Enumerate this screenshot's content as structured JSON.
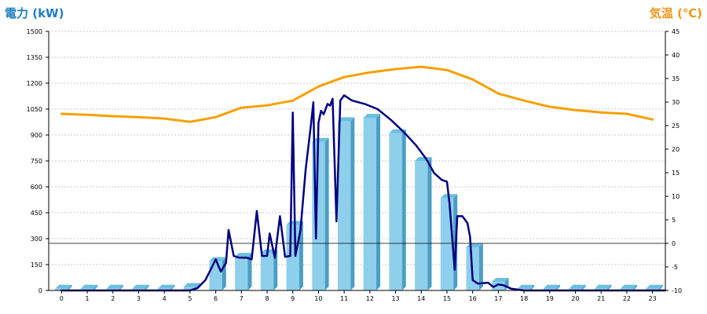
{
  "chart_data": {
    "type": "bar",
    "title": "",
    "left_axis": {
      "label": "電力 (kW)",
      "label_color": "#1f7fc0",
      "ylim": [
        0,
        1500
      ],
      "ticks": [
        0,
        150,
        300,
        450,
        600,
        750,
        900,
        1050,
        1200,
        1350,
        1500
      ]
    },
    "right_axis": {
      "label": "気温 (℃)",
      "label_color": "#f2951a",
      "ylim": [
        -10,
        45
      ],
      "ticks": [
        -10,
        -5,
        0,
        5,
        10,
        15,
        20,
        25,
        30,
        35,
        40,
        45
      ]
    },
    "x": {
      "categories": [
        "0",
        "1",
        "2",
        "3",
        "4",
        "5",
        "6",
        "7",
        "8",
        "9",
        "10",
        "11",
        "12",
        "13",
        "14",
        "15",
        "16",
        "17",
        "18",
        "19",
        "20",
        "21",
        "22",
        "23"
      ]
    },
    "grid": true,
    "series": [
      {
        "type": "bar",
        "axis": "left",
        "color": "#8ecfeb",
        "values": [
          10,
          10,
          10,
          10,
          10,
          20,
          170,
          195,
          215,
          380,
          860,
          980,
          1000,
          910,
          750,
          535,
          250,
          50,
          10,
          10,
          10,
          10,
          10,
          10
        ]
      },
      {
        "type": "line",
        "axis": "left",
        "color": "#000080",
        "points": [
          [
            0,
            0
          ],
          [
            1,
            0
          ],
          [
            2,
            0
          ],
          [
            3,
            0
          ],
          [
            4,
            0
          ],
          [
            5,
            0
          ],
          [
            5.3,
            15
          ],
          [
            5.6,
            60
          ],
          [
            6,
            180
          ],
          [
            6.2,
            110
          ],
          [
            6.4,
            160
          ],
          [
            6.5,
            350
          ],
          [
            6.7,
            200
          ],
          [
            6.9,
            190
          ],
          [
            7.2,
            190
          ],
          [
            7.4,
            180
          ],
          [
            7.6,
            460
          ],
          [
            7.8,
            200
          ],
          [
            8,
            200
          ],
          [
            8.1,
            330
          ],
          [
            8.3,
            190
          ],
          [
            8.5,
            430
          ],
          [
            8.7,
            195
          ],
          [
            8.9,
            200
          ],
          [
            9,
            1030
          ],
          [
            9.1,
            200
          ],
          [
            9.3,
            350
          ],
          [
            9.5,
            700
          ],
          [
            9.7,
            950
          ],
          [
            9.8,
            1090
          ],
          [
            9.9,
            300
          ],
          [
            10,
            970
          ],
          [
            10.1,
            1040
          ],
          [
            10.2,
            1020
          ],
          [
            10.35,
            1080
          ],
          [
            10.45,
            1070
          ],
          [
            10.55,
            1110
          ],
          [
            10.7,
            400
          ],
          [
            10.85,
            1100
          ],
          [
            11,
            1130
          ],
          [
            11.3,
            1100
          ],
          [
            11.8,
            1080
          ],
          [
            12.3,
            1050
          ],
          [
            12.8,
            990
          ],
          [
            13.3,
            920
          ],
          [
            13.8,
            840
          ],
          [
            14.2,
            760
          ],
          [
            14.5,
            680
          ],
          [
            14.8,
            640
          ],
          [
            15,
            630
          ],
          [
            15.1,
            500
          ],
          [
            15.3,
            120
          ],
          [
            15.4,
            430
          ],
          [
            15.6,
            430
          ],
          [
            15.8,
            390
          ],
          [
            15.9,
            310
          ],
          [
            16,
            60
          ],
          [
            16.2,
            40
          ],
          [
            16.6,
            45
          ],
          [
            16.8,
            20
          ],
          [
            17,
            35
          ],
          [
            17.2,
            30
          ],
          [
            17.5,
            10
          ],
          [
            18,
            0
          ],
          [
            23.5,
            0
          ]
        ]
      },
      {
        "type": "line",
        "axis": "right",
        "color": "#f5a000",
        "points": [
          [
            0,
            27.5
          ],
          [
            1,
            27.3
          ],
          [
            2,
            27
          ],
          [
            3,
            26.8
          ],
          [
            4,
            26.5
          ],
          [
            5,
            25.8
          ],
          [
            6,
            26.8
          ],
          [
            7,
            28.8
          ],
          [
            8,
            29.3
          ],
          [
            9,
            30.3
          ],
          [
            10,
            33.3
          ],
          [
            11,
            35.3
          ],
          [
            12,
            36.3
          ],
          [
            13,
            37
          ],
          [
            14,
            37.5
          ],
          [
            15,
            36.8
          ],
          [
            16,
            34.8
          ],
          [
            17,
            31.8
          ],
          [
            18,
            30.3
          ],
          [
            19,
            29
          ],
          [
            20,
            28.3
          ],
          [
            21,
            27.8
          ],
          [
            22,
            27.5
          ],
          [
            23,
            26.3
          ]
        ]
      }
    ]
  },
  "colors": {
    "grid": "#b8b8b8",
    "bar_front": "#8ecfeb",
    "bar_side": "#4b9dc4",
    "bar_top": "#6bbfe0",
    "zero_line": "#000000"
  }
}
